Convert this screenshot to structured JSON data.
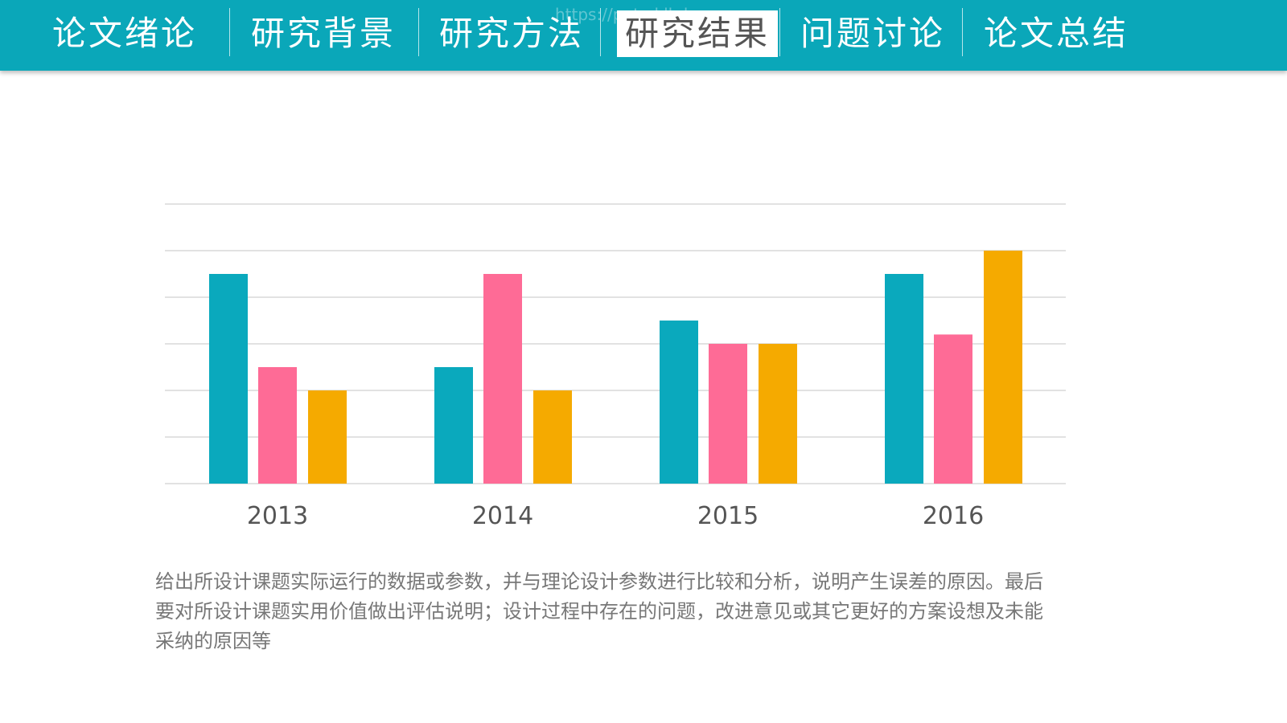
{
  "nav": {
    "items": [
      "论文绪论",
      "研究背景",
      "研究方法",
      "研究结果",
      "问题讨论",
      "论文总结"
    ],
    "active_index": 3,
    "watermark": "https://ppt.okll.de"
  },
  "chart_data": {
    "type": "bar",
    "categories": [
      "2013",
      "2014",
      "2015",
      "2016"
    ],
    "series": [
      {
        "color": "#0aa9bd",
        "values": [
          4.5,
          2.5,
          3.5,
          4.5
        ]
      },
      {
        "color": "#fe6b96",
        "values": [
          2.5,
          4.5,
          3,
          3.2
        ]
      },
      {
        "color": "#f5aa00",
        "values": [
          2,
          2,
          3,
          5
        ]
      }
    ],
    "ylim": [
      0,
      6
    ],
    "yticks": [
      0,
      1,
      2,
      3,
      4,
      5,
      6
    ],
    "grid": true
  },
  "description": "给出所设计课题实际运行的数据或参数，并与理论设计参数进行比较和分析，说明产生误差的原因。最后要对所设计课题实用价值做出评估说明；设计过程中存在的问题，改进意见或其它更好的方案设想及未能采纳的原因等"
}
